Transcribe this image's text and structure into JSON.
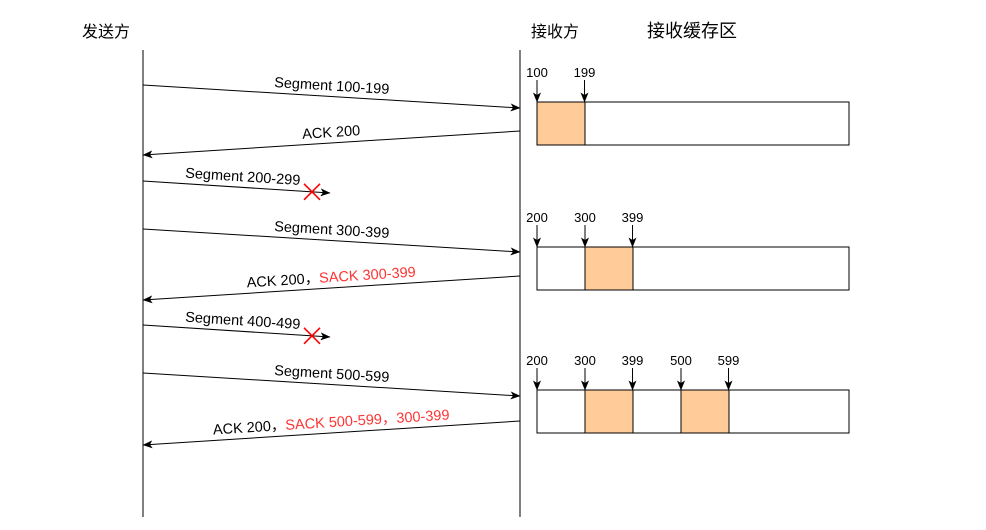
{
  "lanes": {
    "sender": "发送方",
    "receiver": "接收方",
    "buffer_title": "接收缓存区"
  },
  "messages": [
    {
      "to_receiver": true,
      "lost": false,
      "text": "Segment 100-199"
    },
    {
      "to_receiver": false,
      "lost": false,
      "text": "ACK 200"
    },
    {
      "to_receiver": true,
      "lost": true,
      "text": "Segment 200-299"
    },
    {
      "to_receiver": true,
      "lost": false,
      "text": "Segment 300-399"
    },
    {
      "to_receiver": false,
      "lost": false,
      "text": "ACK 200，",
      "sack": "SACK 300-399"
    },
    {
      "to_receiver": true,
      "lost": true,
      "text": "Segment 400-499"
    },
    {
      "to_receiver": true,
      "lost": false,
      "text": "Segment 500-599"
    },
    {
      "to_receiver": false,
      "lost": false,
      "text": "ACK 200，",
      "sack": "SACK 500-599，300-399"
    }
  ],
  "buffers": [
    {
      "marks": [
        100,
        199
      ],
      "received": [
        [
          100,
          199
        ]
      ]
    },
    {
      "marks": [
        200,
        300,
        399
      ],
      "received": [
        [
          300,
          399
        ]
      ]
    },
    {
      "marks": [
        200,
        300,
        399,
        500,
        599
      ],
      "received": [
        [
          300,
          399
        ],
        [
          500,
          599
        ]
      ]
    }
  ],
  "colors": {
    "line": "#000000",
    "sack_text": "#ff3333",
    "lost_mark": "#ff0000",
    "received_fill": "#ffcc99",
    "buffer_fill": "#ffffff"
  }
}
